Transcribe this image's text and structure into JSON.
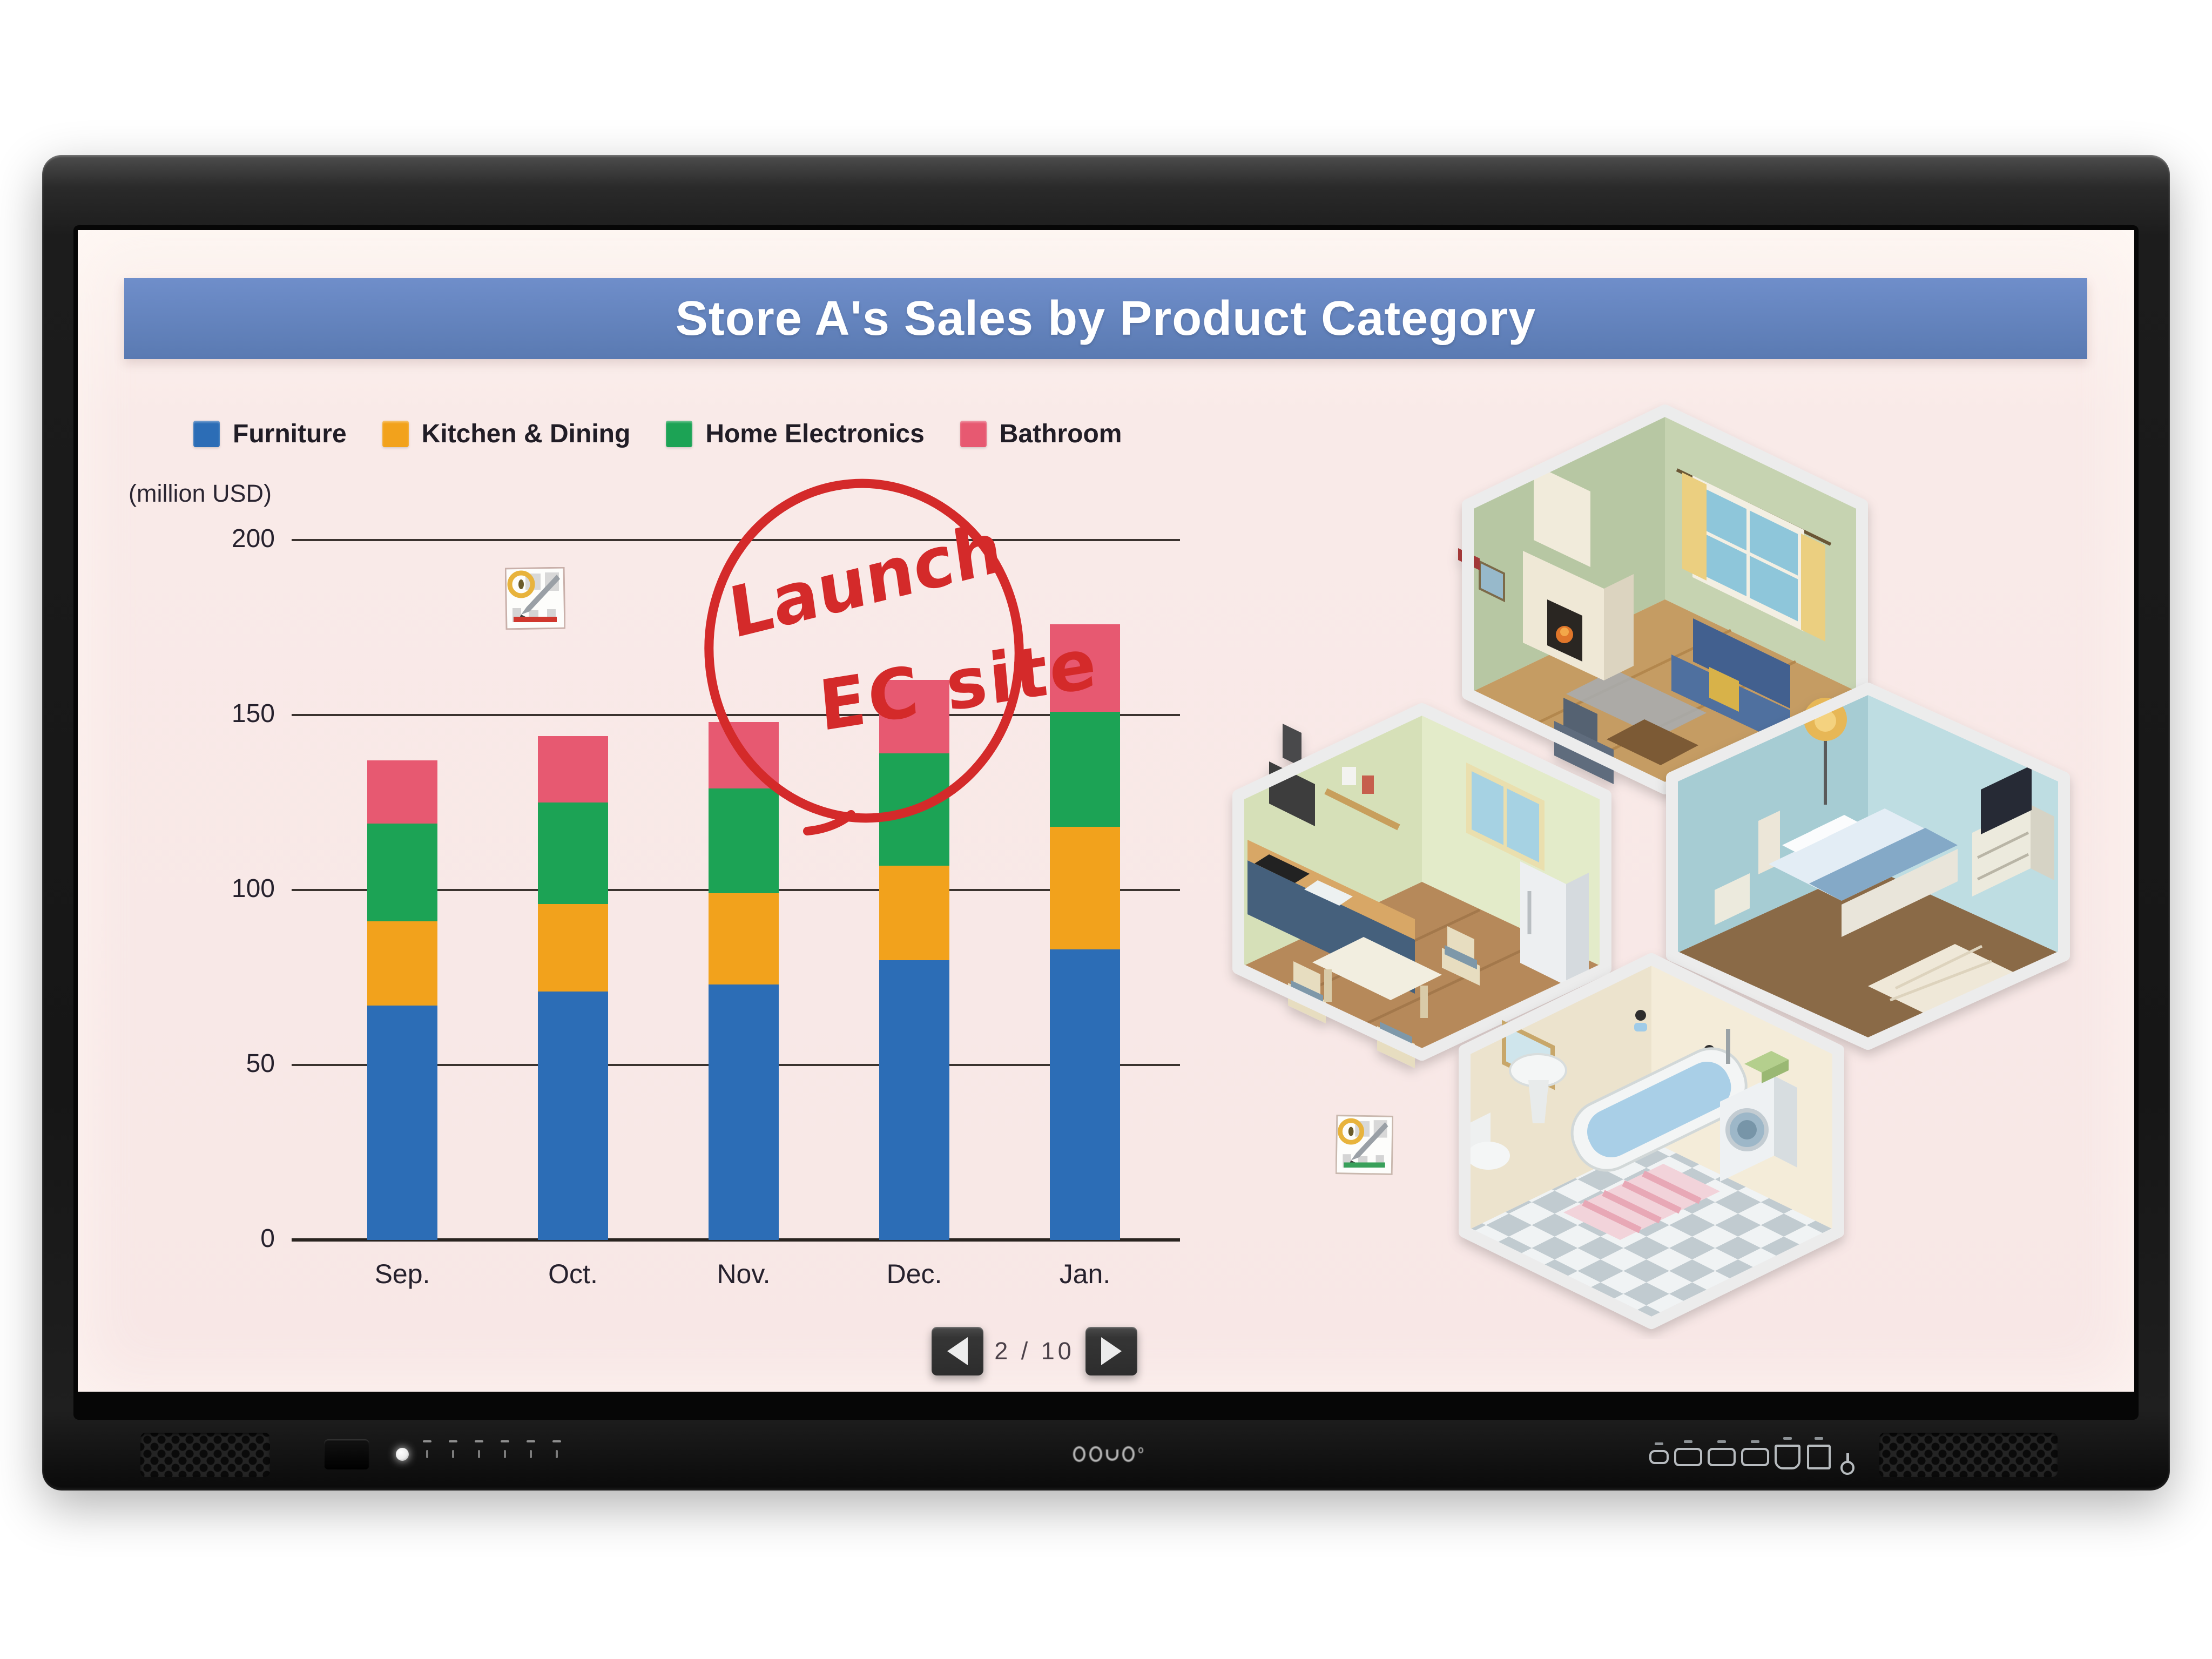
{
  "slide": {
    "title": "Store A's Sales by Product Category",
    "annotation": {
      "line1": "Launch",
      "line2": "EC site"
    },
    "pager": {
      "display": "2 / 10",
      "prev_icon": "left-arrow",
      "next_icon": "right-arrow"
    }
  },
  "chart_data": {
    "type": "bar",
    "stacked": true,
    "title": "Store A's Sales by Product Category",
    "ylabel": "(million USD)",
    "ylim": [
      0,
      200
    ],
    "yticks": [
      0,
      50,
      100,
      150,
      200
    ],
    "grid": "horizontal",
    "legend_position": "top-left",
    "categories": [
      "Sep.",
      "Oct.",
      "Nov.",
      "Dec.",
      "Jan."
    ],
    "series": [
      {
        "name": "Furniture",
        "color": "#2c6db6",
        "values": [
          67,
          71,
          73,
          80,
          83
        ]
      },
      {
        "name": "Kitchen & Dining",
        "color": "#f2a21c",
        "values": [
          24,
          25,
          26,
          27,
          35
        ]
      },
      {
        "name": "Home Electronics",
        "color": "#1ca355",
        "values": [
          28,
          29,
          30,
          32,
          33
        ]
      },
      {
        "name": "Bathroom",
        "color": "#e75971",
        "values": [
          18,
          19,
          19,
          21,
          25
        ]
      }
    ],
    "annotations": [
      "Launch EC site — handwritten in red, circled above the Dec. bar"
    ]
  },
  "illustration": {
    "rooms": [
      "living-room",
      "kitchen-dining",
      "bedroom",
      "bathroom"
    ],
    "stickers": [
      "pencil-chart-stamp-red",
      "pencil-chart-stamp-green"
    ]
  },
  "device": {
    "bezel_icons": [
      "speaker-grille-left",
      "ir-sensor",
      "power-led",
      "control-buttons",
      "brand-logo",
      "usb-port",
      "usb-port",
      "usb-port",
      "hdmi-port",
      "av-port",
      "headphone-jack",
      "speaker-grille-right"
    ]
  }
}
